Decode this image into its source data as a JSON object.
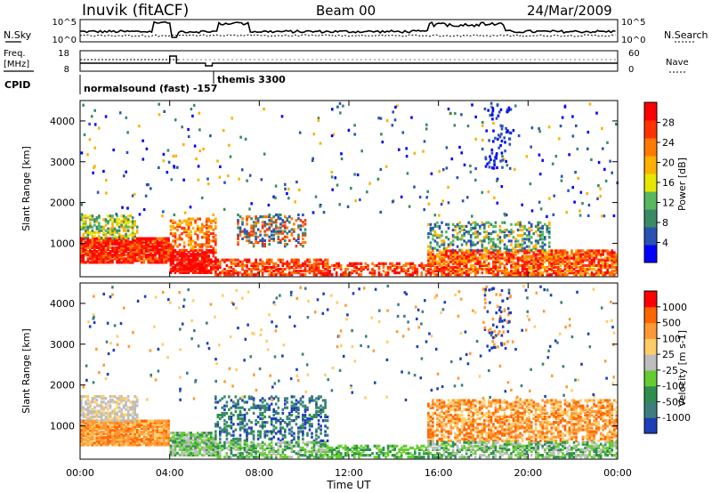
{
  "header": {
    "station": "Inuvik (fitACF)",
    "beam": "Beam 00",
    "date": "24/Mar/2009"
  },
  "top_panel": {
    "left_label": "N.Sky",
    "left_ticks": [
      "10^5",
      "10^0"
    ],
    "right_label": "N.Search",
    "right_ticks": [
      "10^5",
      "10^0"
    ]
  },
  "freq_panel": {
    "left_label_1": "Freq.",
    "left_label_2": "[MHz]",
    "left_ticks": [
      "18",
      "8"
    ],
    "right_label": "Nave",
    "right_ticks": [
      "60",
      "0"
    ],
    "cpid_label": "CPID",
    "cpid_1": "normalsound (fast) -157",
    "cpid_2": "themis 3300"
  },
  "colors": {
    "power": [
      "#0000ff",
      "#2a52b2",
      "#3a8a66",
      "#57b85f",
      "#e6e600",
      "#ffb000",
      "#ff7a00",
      "#ff3300",
      "#ff0000"
    ],
    "velocity": [
      "#1f3fb8",
      "#3d7f7f",
      "#2f8f4f",
      "#66cc33",
      "#bdbdbd",
      "#ffcc66",
      "#ff9933",
      "#ff6600",
      "#ff0000"
    ]
  },
  "chart_data": [
    {
      "type": "heatmap",
      "name": "power",
      "ylabel": "Slant Range [km]",
      "yticks": [
        "4000",
        "3000",
        "2000",
        "1000"
      ],
      "ylim": [
        180,
        4500
      ],
      "xlim": [
        0,
        24
      ],
      "colorbar_label": "Power [dB]",
      "colorbar_ticks": [
        "28",
        "24",
        "20",
        "16",
        "12",
        "8",
        "4"
      ]
    },
    {
      "type": "heatmap",
      "name": "velocity",
      "ylabel": "Slant Range [km]",
      "yticks": [
        "4000",
        "3000",
        "2000",
        "1000"
      ],
      "ylim": [
        180,
        4500
      ],
      "xlim": [
        0,
        24
      ],
      "colorbar_label": "Velocity [m s-1]",
      "colorbar_ticks": [
        "1000",
        "500",
        "100",
        "25",
        "-25",
        "-100",
        "-500",
        "-1000"
      ]
    }
  ],
  "x_axis": {
    "ticks": [
      "00:00",
      "04:00",
      "08:00",
      "12:00",
      "16:00",
      "20:00",
      "00:00"
    ],
    "xlabel": "Time UT"
  }
}
